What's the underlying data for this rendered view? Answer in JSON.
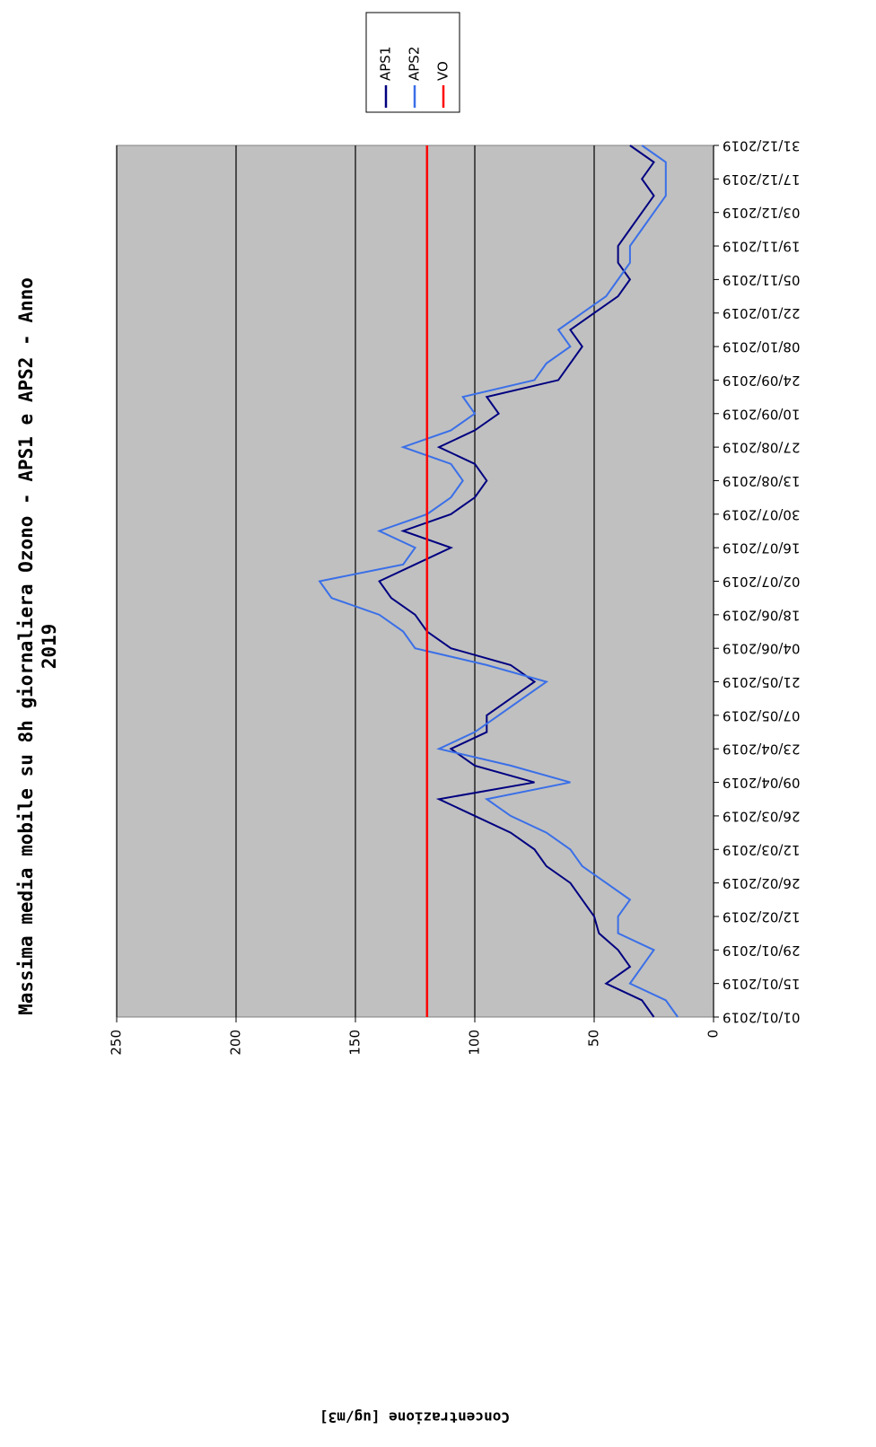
{
  "chart_data": {
    "type": "line",
    "title": [
      "Massima media mobile su 8h giornaliera Ozono - APS1 e APS2 - Anno",
      "2019"
    ],
    "y_label": "Concentrazione [ug/m3]",
    "categories": [
      "01/01/2019",
      null,
      "15/01/2019",
      null,
      "29/01/2019",
      null,
      "12/02/2019",
      null,
      "26/02/2019",
      null,
      "12/03/2019",
      null,
      "26/03/2019",
      null,
      "09/04/2019",
      null,
      "23/04/2019",
      null,
      "07/05/2019",
      null,
      "21/05/2019",
      null,
      "04/06/2019",
      null,
      "18/06/2019",
      null,
      "02/07/2019",
      null,
      "16/07/2019",
      null,
      "30/07/2019",
      null,
      "13/08/2019",
      null,
      "27/08/2019",
      null,
      "10/09/2019",
      null,
      "24/09/2019",
      null,
      "08/10/2019",
      null,
      "22/10/2019",
      null,
      "05/11/2019",
      null,
      "19/11/2019",
      null,
      "03/12/2019",
      null,
      "17/12/2019",
      null,
      "31/12/2019"
    ],
    "series": [
      {
        "name": "APS1",
        "color": "#000080",
        "values": [
          25,
          30,
          45,
          35,
          40,
          48,
          50,
          55,
          60,
          70,
          75,
          85,
          100,
          115,
          75,
          100,
          110,
          95,
          95,
          85,
          75,
          85,
          110,
          120,
          125,
          135,
          140,
          125,
          110,
          130,
          110,
          100,
          95,
          100,
          115,
          100,
          90,
          95,
          65,
          60,
          55,
          60,
          50,
          40,
          35,
          40,
          40,
          35,
          30,
          25,
          30,
          25,
          35
        ]
      },
      {
        "name": "APS2",
        "color": "#3a6fe8",
        "values": [
          15,
          20,
          35,
          30,
          25,
          40,
          40,
          35,
          45,
          55,
          60,
          70,
          85,
          95,
          60,
          85,
          115,
          100,
          90,
          80,
          70,
          95,
          125,
          130,
          140,
          160,
          165,
          130,
          125,
          140,
          120,
          110,
          105,
          110,
          130,
          110,
          100,
          105,
          75,
          70,
          60,
          65,
          55,
          45,
          40,
          35,
          35,
          30,
          25,
          20,
          20,
          20,
          30
        ]
      },
      {
        "name": "VO",
        "color": "#ff0000",
        "values": [
          120,
          120,
          120,
          120,
          120,
          120,
          120,
          120,
          120,
          120,
          120,
          120,
          120,
          120,
          120,
          120,
          120,
          120,
          120,
          120,
          120,
          120,
          120,
          120,
          120,
          120,
          120,
          120,
          120,
          120,
          120,
          120,
          120,
          120,
          120,
          120,
          120,
          120,
          120,
          120,
          120,
          120,
          120,
          120,
          120,
          120,
          120,
          120,
          120,
          120,
          120,
          120,
          120
        ]
      }
    ],
    "ylim": [
      0,
      250
    ],
    "yticks": [
      0,
      50,
      100,
      150,
      200,
      250
    ],
    "grid": true,
    "legend": "top-right"
  }
}
